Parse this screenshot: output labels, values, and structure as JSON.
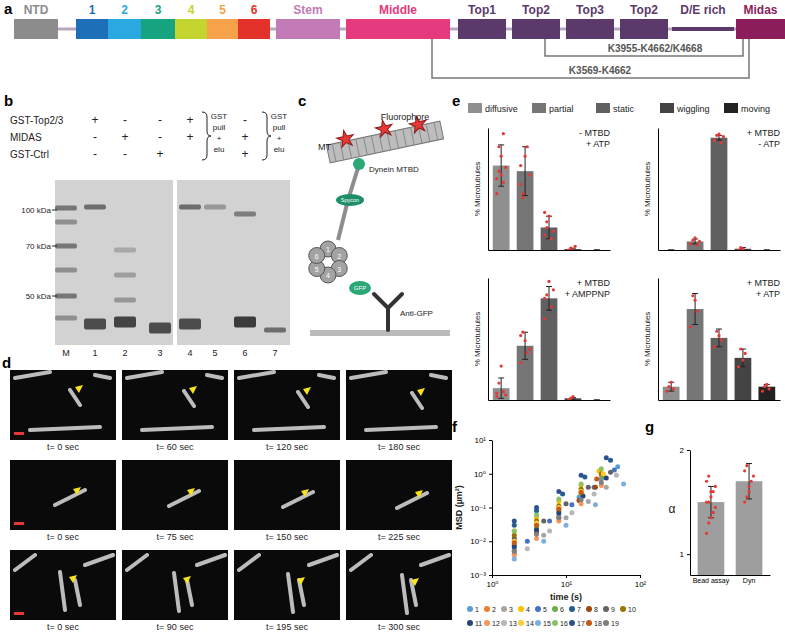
{
  "panel_labels": [
    "a",
    "b",
    "c",
    "d",
    "e",
    "f",
    "g"
  ],
  "domains": [
    {
      "text": "NTD",
      "color": "#8c8c8c",
      "box": true
    },
    {
      "text": "1",
      "color": "#1d6fb8",
      "box": true
    },
    {
      "text": "2",
      "color": "#2aa9e0",
      "box": true
    },
    {
      "text": "3",
      "color": "#16a37f",
      "box": true
    },
    {
      "text": "4",
      "color": "#c5d52f",
      "box": true
    },
    {
      "text": "5",
      "color": "#f5a24a",
      "box": true
    },
    {
      "text": "6",
      "color": "#e4322b",
      "box": true
    },
    {
      "text": "Stem",
      "color": "#c27bb6",
      "box": true
    },
    {
      "text": "Middle",
      "color": "#e63a7e",
      "box": true
    },
    {
      "text": "Top1",
      "color": "#5b3a6b",
      "box": true
    },
    {
      "text": "Top2",
      "color": "#5b3a6b",
      "box": true
    },
    {
      "text": "Top3",
      "color": "#5b3a6b",
      "box": true
    },
    {
      "text": "Top2",
      "color": "#5b3a6b",
      "box": true
    },
    {
      "text": "D/E rich",
      "color": "#5b3a6b",
      "box": false
    },
    {
      "text": "Midas",
      "color": "#8c1d5c",
      "box": true
    }
  ],
  "crosslinks": [
    "K3955-K4662/K4668",
    "K3569-K4662"
  ],
  "gel": {
    "rows": [
      {
        "label": "GST-Top2/3",
        "marks": [
          "+",
          "-",
          "-",
          "+",
          null,
          "-",
          null
        ]
      },
      {
        "label": "MIDAS",
        "marks": [
          "-",
          "+",
          "-",
          "+",
          null,
          "+",
          null
        ]
      },
      {
        "label": "GST-Ctrl",
        "marks": [
          "-",
          "-",
          "+",
          null,
          null,
          "+",
          null
        ]
      }
    ],
    "elution_label": [
      "GST",
      "pull",
      "+",
      "elu"
    ],
    "markers": [
      "100 kDa",
      "70 kDa",
      "50 kDa"
    ],
    "lanes": [
      "M",
      "1",
      "2",
      "3",
      "4",
      "5",
      "6",
      "7"
    ]
  },
  "schematic": {
    "fluorophore": "Fluorophore",
    "mt": "MT",
    "mtbd": "Dynein MTBD",
    "spycon": "Spycon",
    "gfp": "GFP",
    "antibody": "Anti-GFP",
    "ring": [
      "1",
      "2",
      "3",
      "4",
      "5",
      "6"
    ]
  },
  "microscopy": {
    "rows": [
      [
        "t= 0 sec",
        "t= 60 sec",
        "t= 120 sec",
        "t= 180 sec"
      ],
      [
        "t= 0 sec",
        "t= 75 sec",
        "t= 150 sec",
        "t= 225 sec"
      ],
      [
        "t= 0 sec",
        "t= 90 sec",
        "t= 195 sec",
        "t= 300 sec"
      ]
    ]
  },
  "legend_e": {
    "labels": [
      "diffusive",
      "partial",
      "static",
      "wiggling",
      "moving"
    ],
    "colors": [
      "#8f8f8f",
      "#767676",
      "#606060",
      "#444444",
      "#222222"
    ]
  },
  "chart_data": [
    {
      "type": "bar",
      "title": "- MTBD",
      "subtitle": "+ ATP",
      "ylabel": "% Microtubules",
      "categories": [
        null,
        null,
        null,
        null,
        null
      ],
      "values": [
        45,
        42,
        12,
        0.5,
        0
      ],
      "errors": [
        11,
        13,
        6,
        0.5,
        0
      ],
      "points": [
        [
          30,
          42,
          50,
          62,
          44,
          38,
          55,
          40,
          36
        ],
        [
          35,
          28,
          50,
          55,
          40,
          45,
          30
        ],
        [
          8,
          12,
          18,
          6,
          10,
          20,
          15
        ],
        [
          0,
          1,
          0,
          2
        ],
        []
      ],
      "colors": [
        "#8f8f8f",
        "#767676",
        "#606060",
        "#444444",
        "#222222"
      ],
      "ylim": [
        0,
        65
      ],
      "tick_labels": false
    },
    {
      "type": "bar",
      "title": "+ MTBD",
      "subtitle": "- ATP",
      "ylabel": "% Microtubules",
      "categories": [
        null,
        null,
        null,
        null,
        null
      ],
      "values": [
        0,
        7,
        92,
        1,
        0
      ],
      "errors": [
        0,
        2,
        2,
        1,
        0
      ],
      "points": [
        [],
        [
          5,
          8,
          10,
          4,
          7
        ],
        [
          90,
          94,
          95,
          88,
          93
        ],
        [
          0,
          2,
          1
        ],
        []
      ],
      "colors": [
        "#8f8f8f",
        "#767676",
        "#606060",
        "#444444",
        "#222222"
      ],
      "ylim": [
        0,
        100
      ],
      "tick_labels": false
    },
    {
      "type": "bar",
      "title": "+ MTBD",
      "subtitle": "+ AMPPNP",
      "ylabel": "% Microtubules",
      "categories": [
        null,
        null,
        null,
        null,
        null
      ],
      "values": [
        7,
        32,
        60,
        1,
        0
      ],
      "errors": [
        6,
        8,
        7,
        0.5,
        0
      ],
      "points": [
        [
          2,
          10,
          20,
          5,
          3,
          4
        ],
        [
          22,
          40,
          35,
          28,
          30,
          38
        ],
        [
          48,
          62,
          70,
          55,
          65,
          60
        ],
        [
          0,
          1,
          2
        ],
        []
      ],
      "colors": [
        "#8f8f8f",
        "#767676",
        "#606060",
        "#444444",
        "#222222"
      ],
      "ylim": [
        0,
        72
      ],
      "tick_labels": false
    },
    {
      "type": "bar",
      "title": "+ MTBD",
      "subtitle": "+ ATP",
      "ylabel": "% Microtubules",
      "categories": [
        null,
        null,
        null,
        null,
        null
      ],
      "values": [
        6,
        41,
        28,
        19,
        6
      ],
      "errors": [
        2,
        7,
        4,
        4,
        1
      ],
      "points": [
        [
          4,
          6,
          8,
          5
        ],
        [
          33,
          47,
          45,
          40
        ],
        [
          24,
          31,
          29,
          27
        ],
        [
          15,
          23,
          18,
          21
        ],
        [
          4,
          6,
          7,
          5
        ]
      ],
      "colors": [
        "#8f8f8f",
        "#767676",
        "#606060",
        "#444444",
        "#222222"
      ],
      "ylim": [
        0,
        55
      ],
      "tick_labels": false
    },
    {
      "type": "scatter",
      "xlabel": "time (s)",
      "ylabel": "MSD (µm²)",
      "log": true,
      "legend": "bottom",
      "xlim": [
        1,
        100
      ],
      "ylim": [
        0.001,
        10
      ],
      "xticks": [
        {
          "value": 1,
          "label": "10⁰"
        },
        {
          "value": 10,
          "label": "10¹"
        },
        {
          "value": 100,
          "label": "10²"
        }
      ],
      "yticks": [
        {
          "value": 0.001,
          "label": "10⁻³"
        },
        {
          "value": 0.01,
          "label": "10⁻²"
        },
        {
          "value": 0.1,
          "label": "10⁻¹"
        },
        {
          "value": 1,
          "label": "10⁰"
        },
        {
          "value": 10,
          "label": "10¹"
        }
      ],
      "series": [
        {
          "name": "1",
          "color": "#5b9bd5",
          "x": [
            2,
            4,
            8,
            15,
            30,
            50
          ],
          "values": [
            0.006,
            0.02,
            0.06,
            0.2,
            0.7,
            1.6
          ]
        },
        {
          "name": "2",
          "color": "#ed7d31",
          "x": [
            2,
            4,
            8,
            16,
            30
          ],
          "values": [
            0.01,
            0.03,
            0.09,
            0.3,
            0.9
          ]
        },
        {
          "name": "3",
          "color": "#a5a5a5",
          "x": [
            2,
            5,
            10,
            20,
            35
          ],
          "values": [
            0.004,
            0.015,
            0.05,
            0.15,
            0.4
          ]
        },
        {
          "name": "4",
          "color": "#ffc000",
          "x": [
            2,
            4,
            8,
            16,
            28
          ],
          "values": [
            0.02,
            0.05,
            0.15,
            0.45,
            1.2
          ]
        },
        {
          "name": "5",
          "color": "#4472c4",
          "x": [
            3,
            6,
            12,
            24,
            45
          ],
          "values": [
            0.01,
            0.04,
            0.12,
            0.4,
            1.3
          ]
        },
        {
          "name": "6",
          "color": "#70ad47",
          "x": [
            2,
            4,
            8,
            16,
            32
          ],
          "values": [
            0.008,
            0.025,
            0.08,
            0.25,
            0.8
          ]
        },
        {
          "name": "7",
          "color": "#255e91",
          "x": [
            2,
            4,
            9,
            18,
            40
          ],
          "values": [
            0.03,
            0.08,
            0.25,
            0.8,
            2.5
          ]
        },
        {
          "name": "8",
          "color": "#9e480e",
          "x": [
            2,
            4,
            8,
            15,
            25
          ],
          "values": [
            0.005,
            0.018,
            0.05,
            0.16,
            0.4
          ]
        },
        {
          "name": "9",
          "color": "#636363",
          "x": [
            2,
            5,
            10,
            20,
            40
          ],
          "values": [
            0.012,
            0.04,
            0.13,
            0.4,
            1.1
          ]
        },
        {
          "name": "10",
          "color": "#997300",
          "x": [
            2,
            4,
            8,
            16,
            30
          ],
          "values": [
            0.015,
            0.04,
            0.11,
            0.35,
            1.0
          ]
        },
        {
          "name": "11",
          "color": "#264478",
          "x": [
            2,
            4,
            8,
            17,
            35
          ],
          "values": [
            0.007,
            0.022,
            0.07,
            0.22,
            0.75
          ]
        },
        {
          "name": "12",
          "color": "#f1975a",
          "x": [
            2,
            4,
            8,
            16,
            30
          ],
          "values": [
            0.004,
            0.012,
            0.04,
            0.13,
            0.45
          ]
        },
        {
          "name": "13",
          "color": "#b7b7b7",
          "x": [
            3,
            6,
            12,
            24,
            48
          ],
          "values": [
            0.006,
            0.02,
            0.07,
            0.25,
            0.9
          ]
        },
        {
          "name": "14",
          "color": "#ffcd33",
          "x": [
            2,
            4,
            8,
            16,
            32
          ],
          "values": [
            0.01,
            0.035,
            0.1,
            0.3,
            1.0
          ]
        },
        {
          "name": "15",
          "color": "#7cafdd",
          "x": [
            2,
            5,
            10,
            25,
            60
          ],
          "values": [
            0.003,
            0.01,
            0.03,
            0.12,
            0.5
          ]
        },
        {
          "name": "16",
          "color": "#8cc168",
          "x": [
            2,
            4,
            8,
            16,
            30
          ],
          "values": [
            0.02,
            0.06,
            0.18,
            0.5,
            1.4
          ]
        },
        {
          "name": "17",
          "color": "#2f528f",
          "x": [
            2,
            4,
            8,
            16,
            35
          ],
          "values": [
            0.04,
            0.1,
            0.3,
            0.9,
            3.0
          ]
        },
        {
          "name": "18",
          "color": "#c55a11",
          "x": [
            2,
            4,
            8,
            16,
            26
          ],
          "values": [
            0.009,
            0.03,
            0.09,
            0.28,
            0.7
          ]
        },
        {
          "name": "19",
          "color": "#7f7f7f",
          "x": [
            2,
            4,
            8,
            16,
            30
          ],
          "values": [
            0.005,
            0.016,
            0.05,
            0.17,
            0.55
          ]
        }
      ]
    },
    {
      "type": "bar",
      "ylabel": "α",
      "categories": [
        "Bead assay",
        "Dyn"
      ],
      "values": [
        1.5,
        1.7
      ],
      "errors": [
        0.15,
        0.17
      ],
      "points": [
        [
          1.2,
          1.3,
          1.35,
          1.4,
          1.45,
          1.5,
          1.5,
          1.55,
          1.6,
          1.65,
          1.7,
          1.75,
          1.6,
          1.4
        ],
        [
          1.5,
          1.55,
          1.6,
          1.7,
          1.75,
          1.8,
          1.85,
          1.65
        ]
      ],
      "color": "#9e9e9e",
      "ylim": [
        0.8,
        2
      ],
      "yticks": [
        1,
        2
      ]
    }
  ]
}
